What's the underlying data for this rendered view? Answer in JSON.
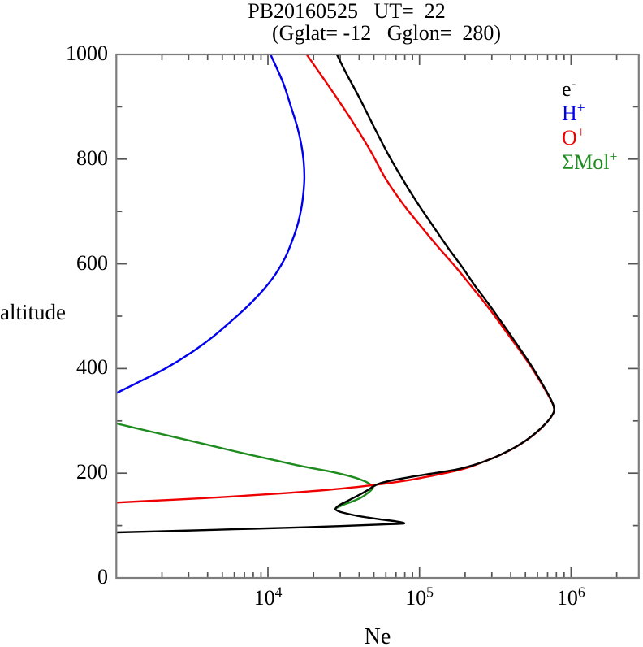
{
  "title": {
    "line1": "PB20160525   UT=  22",
    "line2": "(Gglat= -12   Gglon=  280)"
  },
  "axes": {
    "x": {
      "label": "Ne",
      "scale": "log",
      "min": 1000,
      "max": 2800000,
      "major_ticks": [
        10000,
        100000,
        1000000
      ],
      "tick_labels": [
        {
          "base": "10",
          "exp": "4"
        },
        {
          "base": "10",
          "exp": "5"
        },
        {
          "base": "10",
          "exp": "6"
        }
      ]
    },
    "y": {
      "label": "altitude",
      "min": 0,
      "max": 1000,
      "major_step": 200,
      "minor_step": 100,
      "tick_labels": [
        "1000",
        "800",
        "600",
        "400",
        "200",
        "0"
      ]
    }
  },
  "legend": {
    "items": [
      {
        "main": "e",
        "sup": "-",
        "color": "#000000"
      },
      {
        "main": "H",
        "sup": "+",
        "color": "#0000ee"
      },
      {
        "main": "O",
        "sup": "+",
        "color": "#ee0000"
      },
      {
        "main": "ΣMol",
        "sup": "+",
        "color": "#1e8b1e"
      }
    ]
  },
  "frame_color": "#7d7d7d",
  "tick_color": "#555555",
  "chart_data": {
    "type": "line",
    "title": "PB20160525  UT= 22 (Gglat= -12  Gglon= 280)",
    "xlabel": "Ne",
    "ylabel": "altitude",
    "x_scale": "log",
    "xlim": [
      1000,
      2800000
    ],
    "ylim": [
      0,
      1000
    ],
    "grid": false,
    "legend_position": "top-right",
    "series": [
      {
        "name": "Mol+",
        "color": "#1e8b1e",
        "points_ne_alt": [
          [
            1000,
            295
          ],
          [
            1600,
            281
          ],
          [
            2600,
            267
          ],
          [
            4300,
            252
          ],
          [
            6900,
            238
          ],
          [
            11000,
            225
          ],
          [
            17000,
            213
          ],
          [
            26000,
            203
          ],
          [
            36000,
            193
          ],
          [
            44000,
            184
          ],
          [
            48500,
            176
          ],
          [
            49000,
            171
          ],
          [
            46000,
            163
          ],
          [
            41500,
            154
          ],
          [
            36000,
            146
          ],
          [
            31000,
            139
          ],
          [
            28500,
            134
          ]
        ]
      },
      {
        "name": "H+",
        "color": "#0000ee",
        "points_ne_alt": [
          [
            1000,
            353
          ],
          [
            1400,
            374
          ],
          [
            2100,
            400
          ],
          [
            3100,
            430
          ],
          [
            4300,
            460
          ],
          [
            5700,
            490
          ],
          [
            7400,
            520
          ],
          [
            9300,
            550
          ],
          [
            11200,
            580
          ],
          [
            13000,
            612
          ],
          [
            14500,
            645
          ],
          [
            15800,
            678
          ],
          [
            16700,
            710
          ],
          [
            17200,
            740
          ],
          [
            17400,
            766
          ],
          [
            17200,
            796
          ],
          [
            16600,
            828
          ],
          [
            15600,
            862
          ],
          [
            14200,
            900
          ],
          [
            12600,
            946
          ],
          [
            10400,
            1000
          ]
        ]
      },
      {
        "name": "O+",
        "color": "#ee0000",
        "points_ne_alt": [
          [
            1000,
            144
          ],
          [
            1900,
            148
          ],
          [
            3600,
            152
          ],
          [
            7000,
            157
          ],
          [
            13000,
            162
          ],
          [
            22000,
            167
          ],
          [
            34000,
            172
          ],
          [
            48000,
            177
          ],
          [
            66000,
            182
          ],
          [
            90000,
            188
          ],
          [
            125000,
            196
          ],
          [
            170000,
            204
          ],
          [
            215000,
            212
          ],
          [
            265000,
            222
          ],
          [
            330000,
            233
          ],
          [
            420000,
            248
          ],
          [
            520000,
            265
          ],
          [
            620000,
            283
          ],
          [
            705000,
            300
          ],
          [
            758000,
            313
          ],
          [
            775000,
            321
          ],
          [
            756000,
            333
          ],
          [
            695000,
            353
          ],
          [
            618000,
            378
          ],
          [
            532000,
            408
          ],
          [
            450000,
            438
          ],
          [
            378000,
            468
          ],
          [
            318000,
            498
          ],
          [
            265000,
            528
          ],
          [
            216000,
            560
          ],
          [
            172000,
            595
          ],
          [
            133000,
            632
          ],
          [
            102000,
            672
          ],
          [
            78000,
            714
          ],
          [
            60000,
            762
          ],
          [
            47000,
            818
          ],
          [
            35000,
            878
          ],
          [
            25000,
            941
          ],
          [
            18000,
            1000
          ]
        ]
      },
      {
        "name": "e-",
        "color": "#000000",
        "points_ne_alt": [
          [
            1000,
            87
          ],
          [
            2600,
            90
          ],
          [
            6000,
            93
          ],
          [
            14000,
            96
          ],
          [
            30000,
            99
          ],
          [
            55000,
            102
          ],
          [
            75000,
            103.5
          ],
          [
            79000,
            105
          ],
          [
            70000,
            108
          ],
          [
            55000,
            112
          ],
          [
            40000,
            118
          ],
          [
            32000,
            124
          ],
          [
            28500,
            129
          ],
          [
            28000,
            133
          ],
          [
            30000,
            140
          ],
          [
            34000,
            148
          ],
          [
            39000,
            157
          ],
          [
            44000,
            165
          ],
          [
            48000,
            172
          ],
          [
            53000,
            179
          ],
          [
            65000,
            186
          ],
          [
            88000,
            193
          ],
          [
            125000,
            200
          ],
          [
            175000,
            207
          ],
          [
            230000,
            216
          ],
          [
            300000,
            228
          ],
          [
            400000,
            245
          ],
          [
            500000,
            262
          ],
          [
            600000,
            280
          ],
          [
            700000,
            299
          ],
          [
            758000,
            313
          ],
          [
            775000,
            321
          ],
          [
            758000,
            333
          ],
          [
            700000,
            353
          ],
          [
            625000,
            378
          ],
          [
            540000,
            408
          ],
          [
            460000,
            438
          ],
          [
            390000,
            468
          ],
          [
            330000,
            498
          ],
          [
            278000,
            528
          ],
          [
            230000,
            560
          ],
          [
            190000,
            595
          ],
          [
            153000,
            632
          ],
          [
            123000,
            672
          ],
          [
            98000,
            714
          ],
          [
            78000,
            760
          ],
          [
            62000,
            810
          ],
          [
            50000,
            862
          ],
          [
            40000,
            918
          ],
          [
            33000,
            963
          ],
          [
            28500,
            1000
          ]
        ]
      }
    ]
  }
}
